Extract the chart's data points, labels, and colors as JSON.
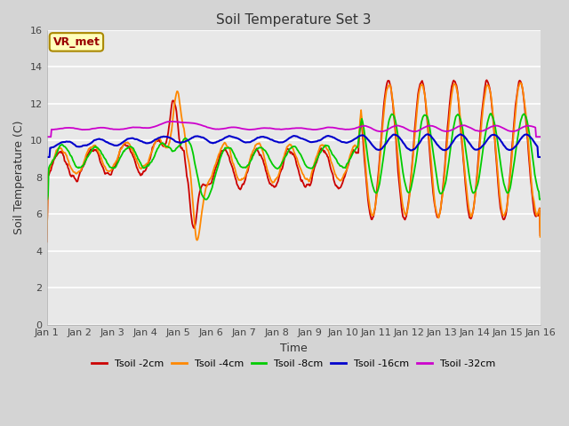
{
  "title": "Soil Temperature Set 3",
  "xlabel": "Time",
  "ylabel": "Soil Temperature (C)",
  "ylim": [
    0,
    16
  ],
  "yticks": [
    0,
    2,
    4,
    6,
    8,
    10,
    12,
    14,
    16
  ],
  "x_labels": [
    "Jan 1",
    "Jan 2",
    "Jan 3",
    "Jan 4",
    "Jan 5",
    "Jan 6",
    "Jan 7",
    "Jan 8",
    "Jan 9",
    "Jan 10",
    "Jan 11",
    "Jan 12",
    "Jan 13",
    "Jan 14",
    "Jan 15",
    "Jan 16"
  ],
  "series_colors": [
    "#cc0000",
    "#ff8800",
    "#00cc00",
    "#0000cc",
    "#cc00cc"
  ],
  "series_labels": [
    "Tsoil -2cm",
    "Tsoil -4cm",
    "Tsoil -8cm",
    "Tsoil -16cm",
    "Tsoil -32cm"
  ],
  "annotation_text": "VR_met",
  "fig_bg": "#d4d4d4",
  "plot_bg": "#e8e8e8",
  "grid_color": "#ffffff",
  "n_points": 720
}
